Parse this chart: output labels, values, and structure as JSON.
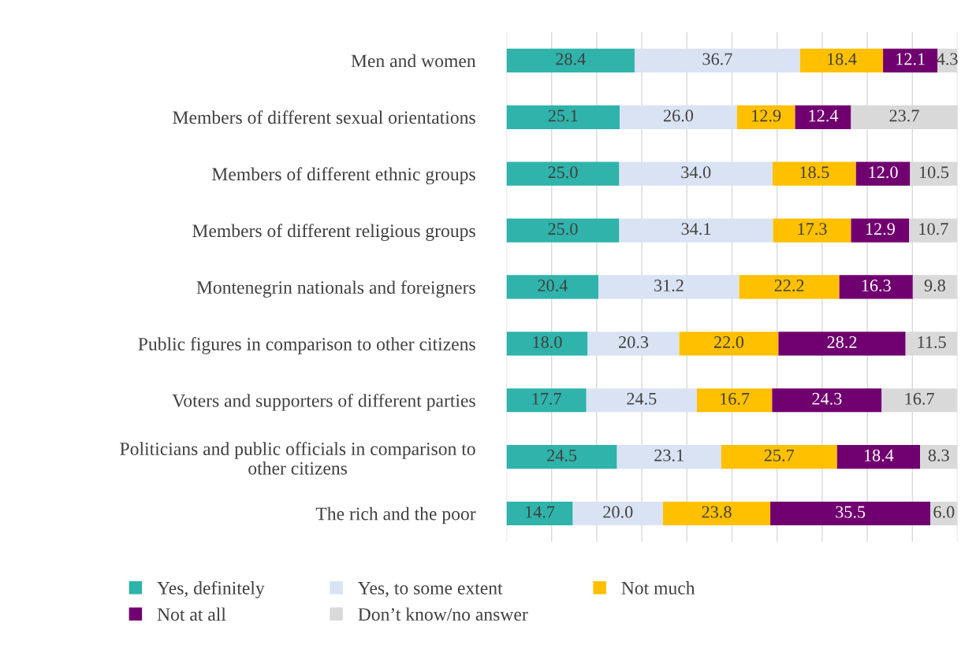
{
  "chart_data": {
    "type": "bar",
    "orientation": "horizontal",
    "stacked": true,
    "categories": [
      "Men and women",
      "Members of different sexual orientations",
      "Members of different ethnic groups",
      "Members of different religious groups",
      "Montenegrin nationals and foreigners",
      "Public figures in comparison to other citizens",
      "Voters and supporters of different parties",
      "Politicians and public officials in comparison to\nother citizens",
      "The rich and the poor"
    ],
    "series": [
      {
        "name": "Yes, definitely",
        "color": "#2fb3aa",
        "values": [
          28.4,
          25.1,
          25.0,
          25.0,
          20.4,
          18.0,
          17.7,
          24.5,
          14.7
        ],
        "value_labels": [
          "28.4",
          "25.1",
          "25.0",
          "25.0",
          "20.4",
          "18.0",
          "17.7",
          "24.5",
          "14.7"
        ]
      },
      {
        "name": "Yes, to some extent",
        "color": "#dae3f3",
        "values": [
          36.7,
          26.0,
          34.0,
          34.1,
          31.2,
          20.3,
          24.5,
          23.1,
          20.0
        ],
        "value_labels": [
          "36.7",
          "26.0",
          "34.0",
          "34.1",
          "31.2",
          "20.3",
          "24.5",
          "23.1",
          "20.0"
        ]
      },
      {
        "name": "Not much",
        "color": "#ffc000",
        "values": [
          18.4,
          12.9,
          18.5,
          17.3,
          22.2,
          22.0,
          16.7,
          25.7,
          23.8
        ],
        "value_labels": [
          "18.4",
          "12.9",
          "18.5",
          "17.3",
          "22.2",
          "22.0",
          "16.7",
          "25.7",
          "23.8"
        ]
      },
      {
        "name": "Not at all",
        "color": "#70006f",
        "values": [
          12.1,
          12.4,
          12.0,
          12.9,
          16.3,
          28.2,
          24.3,
          18.4,
          35.5
        ],
        "value_labels": [
          "12.1",
          "12.4",
          "12.0",
          "12.9",
          "16.3",
          "28.2",
          "24.3",
          "18.4",
          "35.5"
        ]
      },
      {
        "name": "Don’t know/no answer",
        "color": "#d9d9d9",
        "values": [
          4.3,
          23.7,
          10.5,
          10.7,
          9.8,
          11.5,
          16.7,
          8.3,
          6.0
        ],
        "value_labels": [
          "4.3",
          "23.7",
          "10.5",
          "10.7",
          "9.8",
          "11.5",
          "16.7",
          "8.3",
          "6.0"
        ]
      }
    ],
    "xlim": [
      0,
      100
    ],
    "xticks": [
      {
        "value": 0,
        "label": null
      },
      {
        "value": 10,
        "label": null
      },
      {
        "value": 20,
        "label": null
      },
      {
        "value": 30,
        "label": null
      },
      {
        "value": 40,
        "label": null
      },
      {
        "value": 50,
        "label": null
      },
      {
        "value": 60,
        "label": null
      },
      {
        "value": 70,
        "label": null
      },
      {
        "value": 80,
        "label": null
      },
      {
        "value": 90,
        "label": null
      },
      {
        "value": 100,
        "label": null
      }
    ],
    "tick_labels": "y",
    "grid": "x",
    "legend": "bottom"
  }
}
